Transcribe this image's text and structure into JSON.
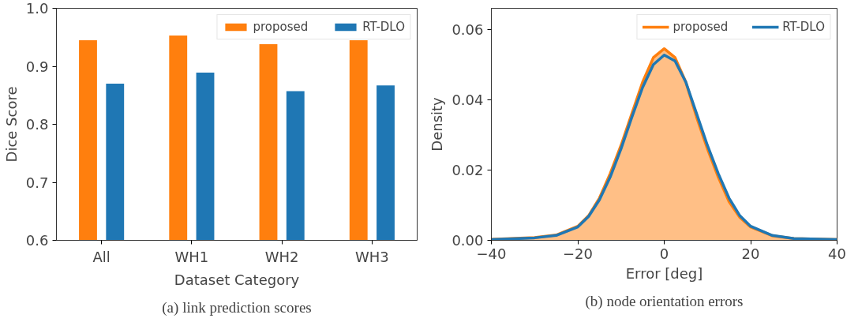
{
  "chart_data": [
    {
      "type": "bar",
      "categories": [
        "All",
        "WH1",
        "WH2",
        "WH3"
      ],
      "xlabel": "Dataset Category",
      "ylabel": "Dice Score",
      "ylim": [
        0.6,
        1.0
      ],
      "yticks": [
        0.6,
        0.7,
        0.8,
        0.9,
        {
          "value": 1.0,
          "label": "1.0"
        }
      ],
      "grid": false,
      "legend": "top right",
      "annotations": [
        "(a) link prediction scores"
      ],
      "series": [
        {
          "name": "proposed",
          "color": "#ff7f0e",
          "values": [
            0.945,
            0.953,
            0.938,
            0.945
          ]
        },
        {
          "name": "RT-DLO",
          "color": "#1f77b4",
          "values": [
            0.87,
            0.889,
            0.857,
            0.867
          ]
        }
      ]
    },
    {
      "type": "line",
      "xlabel": "Error [deg]",
      "ylabel": "Density",
      "xlim": [
        -40,
        40
      ],
      "xticks": [
        {
          "value": -40,
          "label": "−40"
        },
        {
          "value": -20,
          "label": "−20"
        },
        0,
        20,
        40
      ],
      "ylim": [
        0,
        0.066
      ],
      "yticks": [
        {
          "value": 0,
          "label": "0.00"
        },
        {
          "value": 0.02,
          "label": "0.02"
        },
        {
          "value": 0.04,
          "label": "0.04"
        },
        {
          "value": 0.06,
          "label": "0.06"
        }
      ],
      "grid": false,
      "legend": "top right",
      "annotations": [
        "(b) node orientation errors"
      ],
      "series": [
        {
          "name": "proposed",
          "type": "area",
          "color": "#ff7f0e",
          "x": [
            -40,
            -30,
            -25,
            -20,
            -17.5,
            -15,
            -12.5,
            -10,
            -7.5,
            -5,
            -2.5,
            0,
            2.5,
            5,
            7.5,
            10,
            12.5,
            15,
            17.5,
            20,
            25,
            30,
            40
          ],
          "values": [
            0.0003,
            0.0008,
            0.0015,
            0.004,
            0.007,
            0.012,
            0.019,
            0.027,
            0.036,
            0.045,
            0.052,
            0.0545,
            0.052,
            0.045,
            0.035,
            0.026,
            0.018,
            0.011,
            0.0065,
            0.0038,
            0.0013,
            0.0005,
            0.0002
          ]
        },
        {
          "name": "RT-DLO",
          "type": "line",
          "color": "#1f77b4",
          "x": [
            -40,
            -30,
            -25,
            -20,
            -17.5,
            -15,
            -12.5,
            -10,
            -7.5,
            -5,
            -2.5,
            0,
            2.5,
            5,
            7.5,
            10,
            12.5,
            15,
            17.5,
            20,
            25,
            30,
            40
          ],
          "values": [
            0.0002,
            0.0007,
            0.0014,
            0.0038,
            0.0068,
            0.0115,
            0.018,
            0.026,
            0.035,
            0.0435,
            0.05,
            0.0527,
            0.051,
            0.045,
            0.036,
            0.027,
            0.019,
            0.012,
            0.007,
            0.004,
            0.0014,
            0.0005,
            0.0002
          ]
        }
      ]
    }
  ]
}
